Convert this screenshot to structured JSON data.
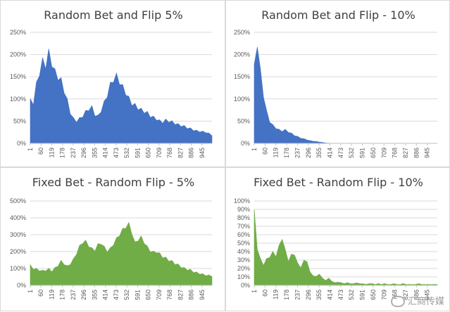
{
  "colors": {
    "blue": "#4472c4",
    "green": "#70ad47"
  },
  "watermark": {
    "text": "汇商传媒",
    "icon": "wechat-icon"
  },
  "chart_data": [
    {
      "type": "area",
      "title": "Random Bet and Flip 5%",
      "color": "#4472c4",
      "ylim": [
        0,
        250
      ],
      "ytick_labels": [
        "0%",
        "50%",
        "100%",
        "150%",
        "200%",
        "250%"
      ],
      "xtick_labels": [
        "1",
        "60",
        "119",
        "178",
        "237",
        "296",
        "355",
        "414",
        "473",
        "532",
        "591",
        "650",
        "709",
        "768",
        "827",
        "886",
        "945"
      ],
      "x_range": [
        1,
        1000
      ],
      "series": [
        {
          "values": [
            95,
            92,
            130,
            160,
            185,
            175,
            205,
            180,
            160,
            150,
            140,
            120,
            95,
            70,
            55,
            50,
            55,
            62,
            70,
            78,
            80,
            65,
            60,
            75,
            90,
            110,
            130,
            145,
            150,
            140,
            125,
            115,
            100,
            90,
            85,
            80,
            75,
            72,
            68,
            62,
            58,
            55,
            50,
            48,
            52,
            50,
            48,
            45,
            42,
            40,
            38,
            35,
            33,
            30,
            28,
            27,
            26,
            25,
            22,
            18
          ]
        }
      ],
      "grid": true
    },
    {
      "type": "area",
      "title": "Random Bet and Flip - 10%",
      "color": "#4472c4",
      "ylim": [
        0,
        250
      ],
      "ytick_labels": [
        "0%",
        "50%",
        "100%",
        "150%",
        "200%",
        "250%"
      ],
      "xtick_labels": [
        "1",
        "60",
        "119",
        "178",
        "237",
        "296",
        "355",
        "414",
        "473",
        "532",
        "591",
        "650",
        "709",
        "768",
        "827",
        "886",
        "945"
      ],
      "x_range": [
        1,
        1000
      ],
      "series": [
        {
          "values": [
            170,
            225,
            160,
            110,
            70,
            50,
            40,
            35,
            30,
            28,
            30,
            26,
            22,
            18,
            15,
            12,
            10,
            8,
            6,
            5,
            4,
            3,
            2,
            1,
            0.5,
            0,
            0,
            0,
            0,
            0,
            0,
            0,
            0,
            0,
            0,
            0,
            0,
            0,
            0,
            0,
            0,
            0,
            0,
            0,
            0,
            0,
            0,
            0,
            0,
            0,
            0,
            0,
            0,
            0,
            0,
            0,
            0,
            0,
            0,
            0
          ]
        }
      ],
      "grid": true
    },
    {
      "type": "area",
      "title": "Fixed Bet - Random Flip - 5%",
      "color": "#70ad47",
      "ylim": [
        0,
        500
      ],
      "ytick_labels": [
        "0%",
        "100%",
        "200%",
        "300%",
        "400%",
        "500%"
      ],
      "xtick_labels": [
        "1",
        "60",
        "119",
        "178",
        "237",
        "296",
        "355",
        "414",
        "473",
        "532",
        "591",
        "650",
        "709",
        "768",
        "827",
        "886",
        "945"
      ],
      "x_range": [
        1,
        1000
      ],
      "series": [
        {
          "values": [
            115,
            100,
            95,
            90,
            85,
            90,
            95,
            85,
            100,
            120,
            140,
            130,
            110,
            130,
            150,
            190,
            230,
            255,
            260,
            235,
            215,
            210,
            240,
            250,
            225,
            205,
            215,
            245,
            275,
            300,
            330,
            345,
            365,
            310,
            250,
            270,
            285,
            255,
            225,
            205,
            195,
            200,
            185,
            170,
            160,
            150,
            140,
            130,
            120,
            110,
            100,
            95,
            90,
            80,
            75,
            70,
            65,
            60,
            58,
            55
          ]
        }
      ],
      "grid": true
    },
    {
      "type": "area",
      "title": "Fixed Bet - Random Flip - 10%",
      "color": "#70ad47",
      "ylim": [
        0,
        100
      ],
      "ytick_labels": [
        "0%",
        "10%",
        "20%",
        "30%",
        "40%",
        "50%",
        "60%",
        "70%",
        "80%",
        "90%",
        "100%"
      ],
      "xtick_labels": [
        "1",
        "60",
        "119",
        "178",
        "237",
        "296",
        "355",
        "414",
        "473",
        "532",
        "591",
        "650",
        "709",
        "768",
        "827",
        "886",
        "945"
      ],
      "x_range": [
        1,
        1000
      ],
      "series": [
        {
          "values": [
            85,
            45,
            30,
            25,
            30,
            35,
            38,
            36,
            45,
            58,
            40,
            30,
            35,
            38,
            25,
            22,
            28,
            30,
            15,
            12,
            10,
            14,
            8,
            6,
            8,
            5,
            3,
            4,
            3,
            2,
            3,
            2,
            2,
            3,
            2,
            2,
            1,
            2,
            2,
            1,
            2,
            1,
            2,
            1,
            1,
            2,
            1,
            1,
            2,
            1,
            1,
            1,
            1,
            2,
            1,
            1,
            1,
            1,
            1,
            1
          ]
        }
      ],
      "grid": true
    }
  ]
}
